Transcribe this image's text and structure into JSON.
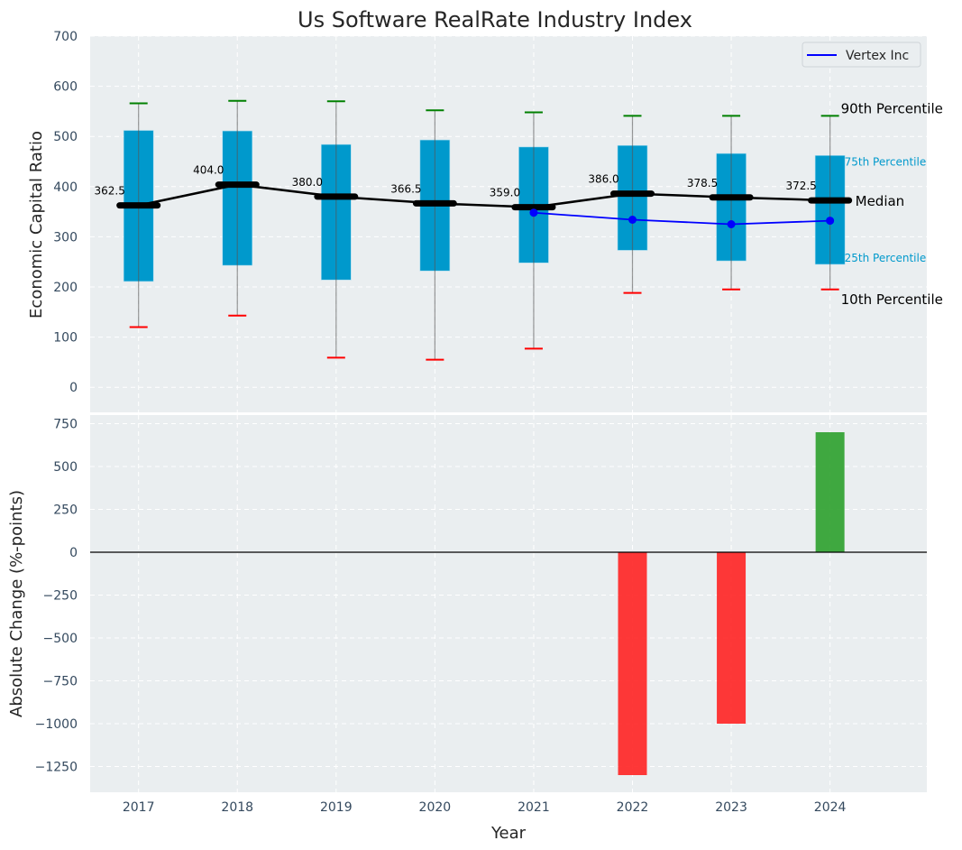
{
  "chart_data": [
    {
      "type": "box",
      "title": "Us Software RealRate Industry Index",
      "xlabel": "",
      "ylabel": "Economic Capital Ratio",
      "ylim": [
        -50,
        700
      ],
      "yticks": [
        0,
        100,
        200,
        300,
        400,
        500,
        600,
        700
      ],
      "x": [
        2017,
        2018,
        2019,
        2020,
        2021,
        2022,
        2023,
        2024
      ],
      "grid": true,
      "legend": {
        "position": "top-right",
        "entries": [
          {
            "label": "Vertex Inc",
            "color": "#0000ff"
          }
        ]
      },
      "percentiles": {
        "p90": [
          566,
          571,
          570,
          552,
          548,
          541,
          541,
          541
        ],
        "p75": [
          512,
          511,
          484,
          493,
          479,
          482,
          466,
          462
        ],
        "median": [
          362.5,
          404.0,
          380.0,
          366.5,
          359.0,
          386.0,
          378.5,
          372.5
        ],
        "p25": [
          211,
          243,
          214,
          232,
          248,
          273,
          252,
          245
        ],
        "p10": [
          120,
          143,
          59,
          55,
          77,
          188,
          195,
          195
        ]
      },
      "median_labels": [
        "362.5",
        "404.0",
        "380.0",
        "366.5",
        "359.0",
        "386.0",
        "378.5",
        "372.5"
      ],
      "series": [
        {
          "name": "Vertex Inc",
          "x": [
            2021,
            2022,
            2023,
            2024
          ],
          "values": [
            348,
            334,
            325,
            332
          ],
          "color": "#0000ff"
        }
      ],
      "annotations": {
        "p90": "90th Percentile",
        "p75": "75th Percentile",
        "median": "Median",
        "p25": "25th Percentile",
        "p10": "10th Percentile"
      },
      "colors": {
        "box": "#0099cc",
        "p90": "#008000",
        "p10": "#ff0000",
        "median": "#000000",
        "annotation_quartile": "#0099cc"
      }
    },
    {
      "type": "bar",
      "xlabel": "Year",
      "ylabel": "Absolute Change (%-points)",
      "ylim": [
        -1400,
        800
      ],
      "yticks": [
        -1250,
        -1000,
        -750,
        -500,
        -250,
        0,
        250,
        500,
        750
      ],
      "categories": [
        "2017",
        "2018",
        "2019",
        "2020",
        "2021",
        "2022",
        "2023",
        "2024"
      ],
      "values": [
        null,
        null,
        null,
        null,
        null,
        -1300,
        -1000,
        700
      ],
      "grid": true,
      "colors": {
        "positive": "#2ca02c",
        "negative": "#ff2222"
      }
    }
  ]
}
